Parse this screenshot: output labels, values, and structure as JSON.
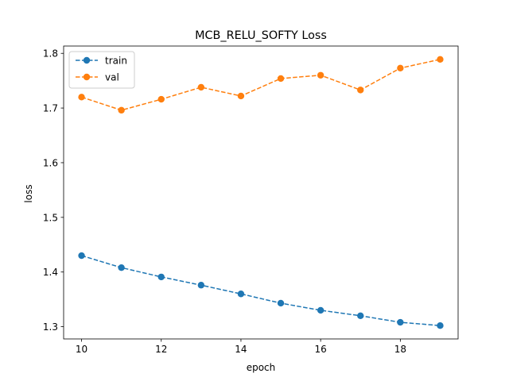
{
  "chart_data": {
    "type": "line",
    "title": "MCB_RELU_SOFTY Loss",
    "xlabel": "epoch",
    "ylabel": "loss",
    "x": [
      10,
      11,
      12,
      13,
      14,
      15,
      16,
      17,
      18,
      19
    ],
    "series": [
      {
        "name": "train",
        "color": "#1f77b4",
        "line_style": "dashed",
        "marker": "circle",
        "values": [
          1.43,
          1.408,
          1.391,
          1.376,
          1.36,
          1.343,
          1.33,
          1.32,
          1.308,
          1.302
        ]
      },
      {
        "name": "val",
        "color": "#ff7f0e",
        "line_style": "dashed",
        "marker": "circle",
        "values": [
          1.72,
          1.696,
          1.716,
          1.738,
          1.722,
          1.754,
          1.76,
          1.733,
          1.773,
          1.789
        ]
      }
    ],
    "xlim": [
      9.55,
      19.45
    ],
    "ylim": [
      1.2776,
      1.8134
    ],
    "xticks": [
      10,
      12,
      14,
      16,
      18
    ],
    "yticks": [
      1.3,
      1.4,
      1.5,
      1.6,
      1.7,
      1.8
    ],
    "grid": false,
    "legend_position": "upper left"
  }
}
